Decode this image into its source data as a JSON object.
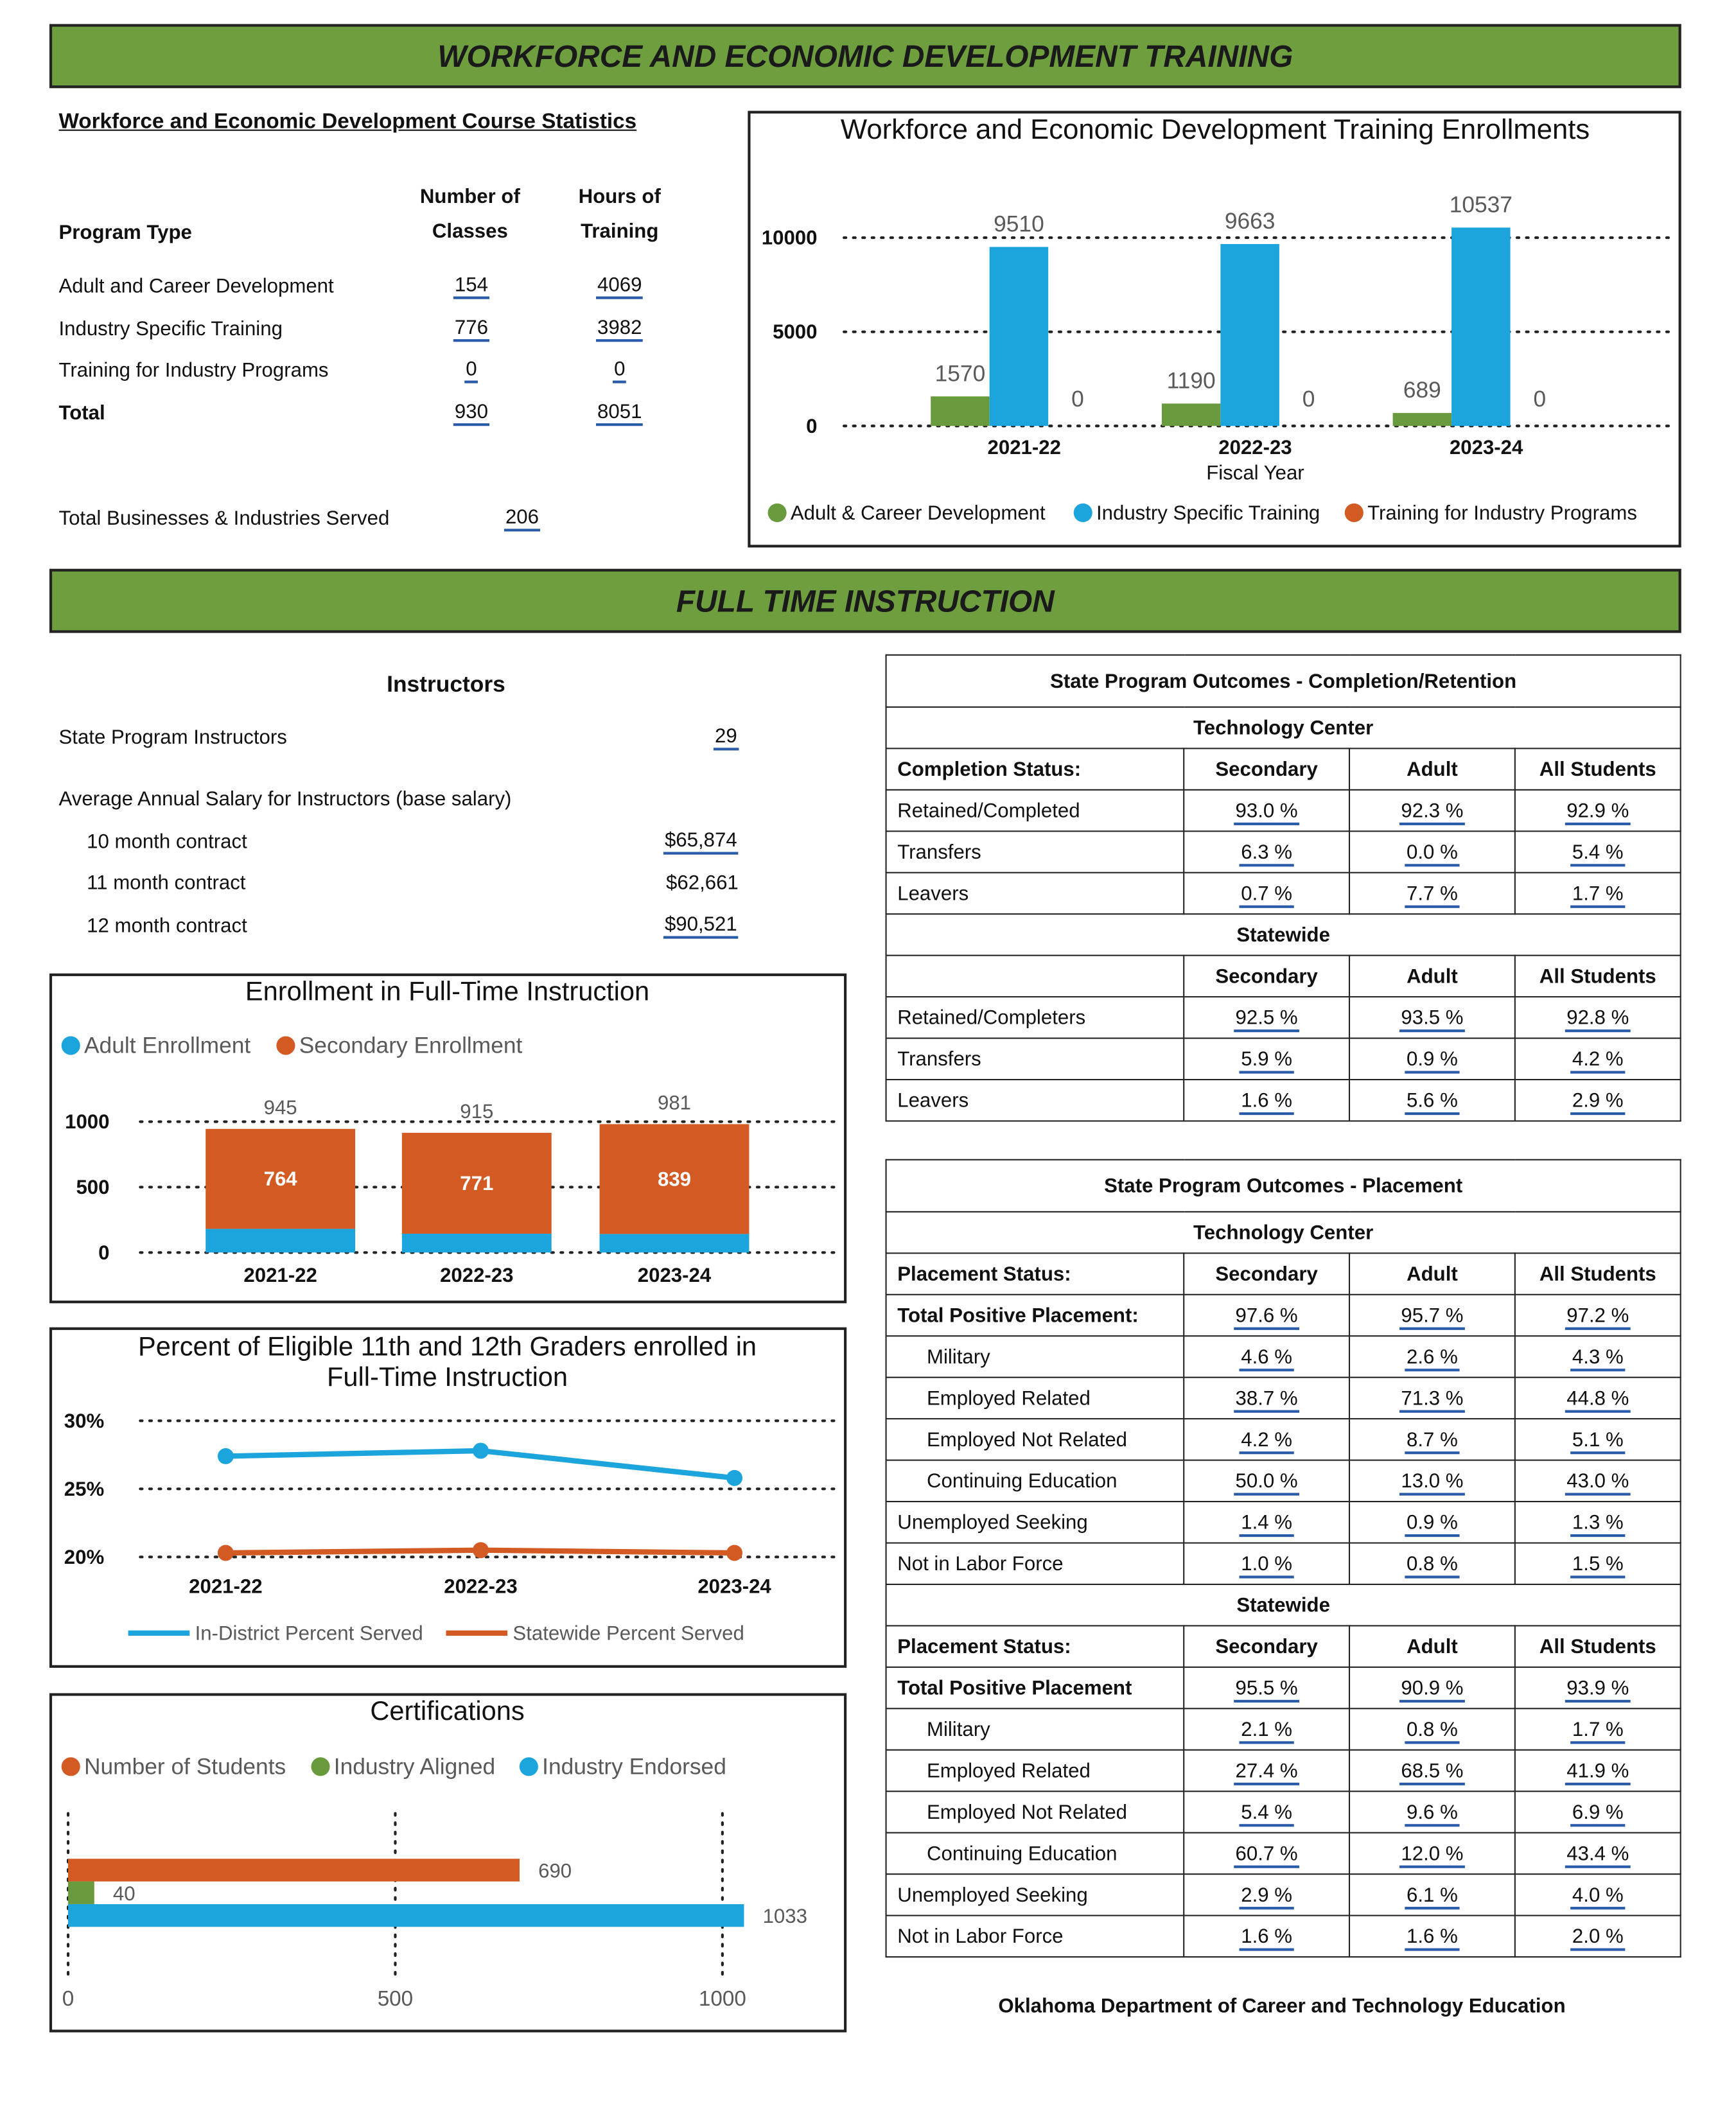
{
  "banners": {
    "workforce": "WORKFORCE AND ECONOMIC DEVELOPMENT TRAINING",
    "fulltime": "FULL TIME INSTRUCTION"
  },
  "course_stats": {
    "title": "Workforce and Economic Development Course Statistics",
    "col_program": "Program Type",
    "col_classes": [
      "Number of",
      "Classes"
    ],
    "col_hours": [
      "Hours of",
      "Training"
    ],
    "rows": [
      {
        "label": "Adult and Career Development",
        "classes": "154",
        "hours": "4069"
      },
      {
        "label": "Industry Specific Training",
        "classes": "776",
        "hours": "3982"
      },
      {
        "label": "Training for Industry Programs",
        "classes": "0",
        "hours": "0"
      },
      {
        "label": "Total",
        "classes": "930",
        "hours": "8051"
      }
    ],
    "businesses_label": "Total Businesses & Industries Served",
    "businesses_value": "206"
  },
  "instructors": {
    "title": "Instructors",
    "state_label": "State Program Instructors",
    "state_value": "29",
    "salary_label": "Average Annual Salary for Instructors (base salary)",
    "contracts": [
      {
        "label": "10 month contract",
        "value": "$65,874"
      },
      {
        "label": "11 month contract",
        "value": "$62,661"
      },
      {
        "label": "12 month contract",
        "value": "$90,521"
      }
    ]
  },
  "colors": {
    "green": "#6a9a3e",
    "blue": "#1ca4dc",
    "orange": "#d35a22",
    "banner": "#6f9e3f"
  },
  "chart_data": [
    {
      "type": "bar",
      "title": "Workforce and Economic Development Training Enrollments",
      "xlabel": "Fiscal Year",
      "categories": [
        "2021-22",
        "2022-23",
        "2023-24"
      ],
      "series": [
        {
          "name": "Adult & Career Development",
          "values": [
            1570,
            1190,
            689
          ]
        },
        {
          "name": "Industry Specific Training",
          "values": [
            9510,
            9663,
            10537
          ]
        },
        {
          "name": "Training for Industry Programs",
          "values": [
            0,
            0,
            0
          ]
        }
      ],
      "yticks": [
        "0",
        "5000",
        "10000"
      ],
      "ylim": [
        0,
        10000
      ],
      "legend": "bottom"
    },
    {
      "type": "stacked-bar",
      "title": "Enrollment in Full-Time Instruction",
      "categories": [
        "2021-22",
        "2022-23",
        "2023-24"
      ],
      "series": [
        {
          "name": "Adult Enrollment",
          "values": [
            181,
            144,
            142
          ]
        },
        {
          "name": "Secondary Enrollment",
          "values": [
            764,
            771,
            839
          ]
        }
      ],
      "totals": [
        945,
        915,
        981
      ],
      "yticks": [
        "0",
        "500",
        "1000"
      ],
      "ylim": [
        0,
        1000
      ],
      "legend": "top-left"
    },
    {
      "type": "line",
      "title": [
        "Percent of Eligible 11th and 12th Graders enrolled in",
        "Full-Time Instruction"
      ],
      "categories": [
        "2021-22",
        "2022-23",
        "2023-24"
      ],
      "series": [
        {
          "name": "In-District Percent Served",
          "values": [
            27.4,
            27.8,
            25.8
          ]
        },
        {
          "name": "Statewide Percent Served",
          "values": [
            20.3,
            20.5,
            20.3
          ]
        }
      ],
      "yticks": [
        "20%",
        "25%",
        "30%"
      ],
      "ylim": [
        20,
        30
      ],
      "legend": "bottom"
    },
    {
      "type": "bar-horizontal",
      "title": "Certifications",
      "series": [
        {
          "name": "Number of Students",
          "value": 690
        },
        {
          "name": "Industry Aligned",
          "value": 40
        },
        {
          "name": "Industry Endorsed",
          "value": 1033
        }
      ],
      "xticks": [
        "0",
        "500",
        "1000"
      ],
      "xlim": [
        0,
        1000
      ],
      "legend": "top-left"
    }
  ],
  "completion_table": {
    "title": "State Program Outcomes - Completion/Retention",
    "sections": [
      {
        "name": "Technology Center",
        "header": [
          "Completion Status:",
          "Secondary",
          "Adult",
          "All Students"
        ],
        "rows": [
          {
            "label": "Retained/Completed",
            "values": [
              "93.0 %",
              "92.3 %",
              "92.9 %"
            ]
          },
          {
            "label": "Transfers",
            "values": [
              "6.3 %",
              "0.0 %",
              "5.4 %"
            ]
          },
          {
            "label": "Leavers",
            "values": [
              "0.7 %",
              "7.7 %",
              "1.7 %"
            ]
          }
        ]
      },
      {
        "name": "Statewide",
        "header": [
          "",
          "Secondary",
          "Adult",
          "All Students"
        ],
        "rows": [
          {
            "label": "Retained/Completers",
            "values": [
              "92.5 %",
              "93.5 %",
              "92.8 %"
            ]
          },
          {
            "label": "Transfers",
            "values": [
              "5.9 %",
              "0.9 %",
              "4.2 %"
            ]
          },
          {
            "label": "Leavers",
            "values": [
              "1.6 %",
              "5.6 %",
              "2.9 %"
            ]
          }
        ]
      }
    ]
  },
  "placement_table": {
    "title": "State Program Outcomes - Placement",
    "sections": [
      {
        "name": "Technology Center",
        "header": [
          "Placement Status:",
          "Secondary",
          "Adult",
          "All Students"
        ],
        "rows": [
          {
            "label": "Total Positive Placement:",
            "bold": true,
            "values": [
              "97.6 %",
              "95.7 %",
              "97.2 %"
            ]
          },
          {
            "label": "Military",
            "indent": true,
            "values": [
              "4.6 %",
              "2.6 %",
              "4.3 %"
            ]
          },
          {
            "label": "Employed Related",
            "indent": true,
            "values": [
              "38.7 %",
              "71.3 %",
              "44.8 %"
            ]
          },
          {
            "label": "Employed Not Related",
            "indent": true,
            "values": [
              "4.2 %",
              "8.7 %",
              "5.1 %"
            ]
          },
          {
            "label": "Continuing Education",
            "indent": true,
            "values": [
              "50.0 %",
              "13.0 %",
              "43.0 %"
            ]
          },
          {
            "label": "Unemployed Seeking",
            "values": [
              "1.4 %",
              "0.9 %",
              "1.3 %"
            ]
          },
          {
            "label": "Not in Labor Force",
            "values": [
              "1.0 %",
              "0.8 %",
              "1.5 %"
            ]
          }
        ]
      },
      {
        "name": "Statewide",
        "header": [
          "Placement Status:",
          "Secondary",
          "Adult",
          "All Students"
        ],
        "rows": [
          {
            "label": "Total Positive Placement",
            "bold": true,
            "values": [
              "95.5 %",
              "90.9 %",
              "93.9 %"
            ]
          },
          {
            "label": "Military",
            "indent": true,
            "values": [
              "2.1 %",
              "0.8 %",
              "1.7 %"
            ]
          },
          {
            "label": "Employed Related",
            "indent": true,
            "values": [
              "27.4 %",
              "68.5 %",
              "41.9 %"
            ]
          },
          {
            "label": "Employed Not Related",
            "indent": true,
            "values": [
              "5.4 %",
              "9.6 %",
              "6.9 %"
            ]
          },
          {
            "label": "Continuing Education",
            "indent": true,
            "values": [
              "60.7 %",
              "12.0 %",
              "43.4 %"
            ]
          },
          {
            "label": "Unemployed Seeking",
            "values": [
              "2.9 %",
              "6.1 %",
              "4.0 %"
            ]
          },
          {
            "label": "Not in Labor Force",
            "values": [
              "1.6 %",
              "1.6 %",
              "2.0 %"
            ]
          }
        ]
      }
    ]
  },
  "footer": "Oklahoma Department of Career and Technology Education"
}
